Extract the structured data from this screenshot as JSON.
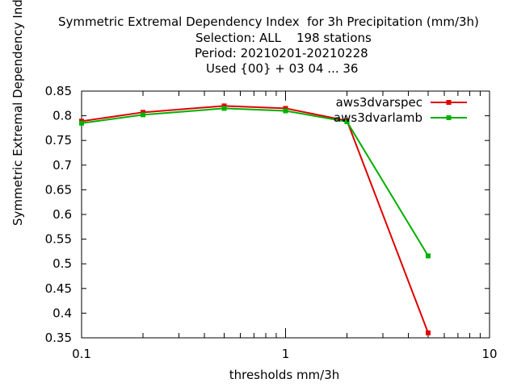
{
  "title_lines": [
    "Symmetric Extremal Dependency Index  for 3h Precipitation (mm/3h)",
    "Selection: ALL    198 stations",
    "Period: 20210201-20210228",
    "Used {00} + 03 04 ... 36"
  ],
  "chart_data": {
    "type": "line",
    "title": "Symmetric Extremal Dependency Index  for 3h Precipitation (mm/3h)",
    "xlabel": "thresholds mm/3h",
    "ylabel": "Symmetric Extremal Dependency Index",
    "x_scale": "log",
    "xlim": [
      0.1,
      10
    ],
    "ylim": [
      0.35,
      0.85
    ],
    "x_ticks": [
      "0.1",
      "1",
      "10"
    ],
    "y_ticks": [
      "0.35",
      "0.4",
      "0.45",
      "0.5",
      "0.55",
      "0.6",
      "0.65",
      "0.7",
      "0.75",
      "0.8",
      "0.85"
    ],
    "legend_position": "top-right",
    "grid": false,
    "x": [
      0.1,
      0.2,
      0.5,
      1,
      2,
      5
    ],
    "series": [
      {
        "name": "aws3dvarspec",
        "color": "#e00000",
        "values": [
          0.789,
          0.807,
          0.82,
          0.815,
          0.79,
          0.36
        ]
      },
      {
        "name": "aws3dvarlamb",
        "color": "#00b000",
        "values": [
          0.785,
          0.802,
          0.815,
          0.81,
          0.788,
          0.516
        ]
      }
    ]
  }
}
